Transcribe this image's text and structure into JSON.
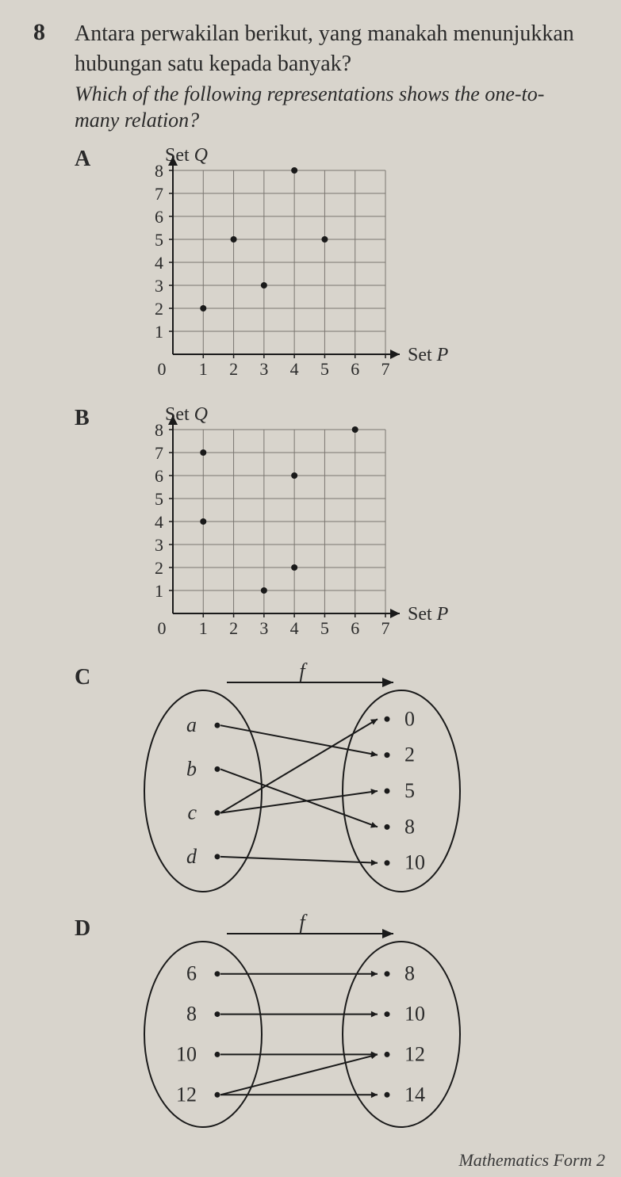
{
  "question": {
    "number": "8",
    "text_ms": "Antara perwakilan berikut, yang manakah menunjukkan hubungan satu kepada banyak?",
    "text_en": "Which of the following representations shows the one-to-many relation?"
  },
  "chartA": {
    "type": "scatter",
    "y_axis_label": "Set Q",
    "x_axis_label": "Set P",
    "xlim": [
      0,
      7
    ],
    "ylim": [
      0,
      8
    ],
    "x_ticks": [
      "1",
      "2",
      "3",
      "4",
      "5",
      "6",
      "7"
    ],
    "y_ticks": [
      "1",
      "2",
      "3",
      "4",
      "5",
      "6",
      "7",
      "8"
    ],
    "points": [
      [
        1,
        2
      ],
      [
        2,
        5
      ],
      [
        3,
        3
      ],
      [
        4,
        8
      ],
      [
        5,
        5
      ]
    ],
    "grid_color": "#7a7670",
    "axis_color": "#1a1a1a",
    "point_color": "#1a1a1a",
    "point_radius": 4,
    "tick_fontsize": 22,
    "label_fontsize": 24
  },
  "chartB": {
    "type": "scatter",
    "y_axis_label": "Set Q",
    "x_axis_label": "Set P",
    "xlim": [
      0,
      7
    ],
    "ylim": [
      0,
      8
    ],
    "x_ticks": [
      "1",
      "2",
      "3",
      "4",
      "5",
      "6",
      "7"
    ],
    "y_ticks": [
      "1",
      "2",
      "3",
      "4",
      "5",
      "6",
      "7",
      "8"
    ],
    "points": [
      [
        1,
        4
      ],
      [
        1,
        7
      ],
      [
        3,
        1
      ],
      [
        4,
        2
      ],
      [
        4,
        6
      ],
      [
        6,
        8
      ]
    ],
    "grid_color": "#7a7670",
    "axis_color": "#1a1a1a",
    "point_color": "#1a1a1a",
    "point_radius": 4,
    "tick_fontsize": 22,
    "label_fontsize": 24
  },
  "mapC": {
    "type": "arrow-diagram",
    "func_label": "f",
    "left": [
      "a",
      "b",
      "c",
      "d"
    ],
    "right": [
      "0",
      "2",
      "5",
      "8",
      "10"
    ],
    "edges": [
      [
        "a",
        "2"
      ],
      [
        "b",
        "8"
      ],
      [
        "c",
        "0"
      ],
      [
        "c",
        "5"
      ],
      [
        "d",
        "10"
      ]
    ],
    "ellipse_stroke": "#1a1a1a",
    "arrow_color": "#1a1a1a",
    "label_fontsize": 26,
    "left_italic": true
  },
  "mapD": {
    "type": "arrow-diagram",
    "func_label": "f",
    "left": [
      "6",
      "8",
      "10",
      "12"
    ],
    "right": [
      "8",
      "10",
      "12",
      "14"
    ],
    "edges": [
      [
        "6",
        "8"
      ],
      [
        "8",
        "10"
      ],
      [
        "10",
        "12"
      ],
      [
        "12",
        "12"
      ],
      [
        "12",
        "14"
      ]
    ],
    "ellipse_stroke": "#1a1a1a",
    "arrow_color": "#1a1a1a",
    "label_fontsize": 26,
    "left_italic": false
  },
  "choice_labels": {
    "A": "A",
    "B": "B",
    "C": "C",
    "D": "D"
  },
  "footer": "Mathematics Form 2"
}
